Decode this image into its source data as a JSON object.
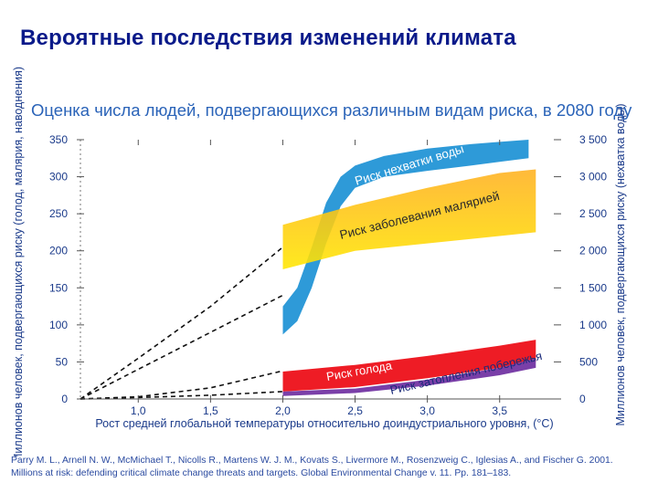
{
  "slide_title": "Вероятные последствия изменений климата",
  "reference": "Parry M. L., Arnell N. W., McMichael T., Nicolls R., Martens W. J. M., Kovats S., Livermore M., Rosenzweig C., Iglesias A., and Fischer G. 2001. Millions at risk: defending critical climate change threats and targets. Global Environmental Change v. 11. Pp. 181–183.",
  "colors": {
    "title": "#0a1a8a",
    "subtitle": "#2a63b8",
    "water": "#2e9ad8",
    "malaria_yellow": "#ffe600",
    "malaria_orange": "#ffb020",
    "hunger": "#ee1c25",
    "coastal": "#7a3fa8",
    "axis": "#555555"
  },
  "chart_data": {
    "type": "area",
    "title": "Оценка числа людей, подвергающихся различным видам риска, в 2080 году",
    "xlabel": "Рост средней глобальной температуры относительно доиндустриального уровня, (°С)",
    "ylabel_left": "Миллионов человек, подвергающихся риску (голод, малярия, наводнения)",
    "ylabel_right": "Миллионов человек, подвергающихся риску (нехватка воды)",
    "xlim": [
      0.6,
      3.9
    ],
    "ylim_left": [
      0,
      350
    ],
    "ylim_right": [
      0,
      3500
    ],
    "x_ticks": [
      "1,0",
      "1,5",
      "2,0",
      "2,5",
      "3,0",
      "3,5"
    ],
    "x_tick_values": [
      1.0,
      1.5,
      2.0,
      2.5,
      3.0,
      3.5
    ],
    "y_left_ticks": [
      "0",
      "50",
      "100",
      "150",
      "200",
      "250",
      "300",
      "350"
    ],
    "y_left_tick_values": [
      0,
      50,
      100,
      150,
      200,
      250,
      300,
      350
    ],
    "y_right_ticks": [
      "0",
      "500",
      "1 000",
      "1 500",
      "2 000",
      "2 500",
      "3 000",
      "3 500"
    ],
    "series": [
      {
        "name": "Риск нехватки воды",
        "axis": "right",
        "x": [
          2.0,
          2.1,
          2.2,
          2.3,
          2.4,
          2.5,
          2.7,
          3.0,
          3.3,
          3.5,
          3.7
        ],
        "lower": [
          870,
          1050,
          1500,
          2100,
          2600,
          2850,
          3000,
          3080,
          3150,
          3200,
          3250
        ],
        "upper": [
          1250,
          1500,
          2050,
          2650,
          3000,
          3150,
          3280,
          3380,
          3440,
          3470,
          3500
        ],
        "dashed_projection": {
          "x": [
            0.6,
            1.0,
            1.5,
            2.0
          ],
          "y": [
            0,
            550,
            1250,
            2050
          ]
        }
      },
      {
        "name": "Риск заболевания малярией",
        "axis": "left",
        "x": [
          2.0,
          2.5,
          3.0,
          3.5,
          3.75
        ],
        "lower": [
          175,
          200,
          210,
          220,
          225
        ],
        "upper": [
          235,
          262,
          285,
          305,
          310
        ],
        "dashed_projection": {
          "x": [
            0.6,
            1.0,
            1.5,
            2.0
          ],
          "y": [
            0,
            40,
            90,
            140
          ]
        }
      },
      {
        "name": "Риск голода",
        "axis": "left",
        "x": [
          2.0,
          2.5,
          3.0,
          3.5,
          3.75
        ],
        "lower": [
          10,
          16,
          28,
          42,
          50
        ],
        "upper": [
          37,
          46,
          58,
          72,
          80
        ],
        "dashed_projection": {
          "x": [
            0.6,
            1.0,
            1.5,
            2.0
          ],
          "y": [
            0,
            3,
            15,
            38
          ]
        }
      },
      {
        "name": "Риск затопления побережья",
        "axis": "left",
        "x": [
          2.0,
          2.5,
          3.0,
          3.5,
          3.75
        ],
        "lower": [
          4,
          8,
          18,
          32,
          42
        ],
        "upper": [
          10,
          14,
          26,
          42,
          55
        ],
        "dashed_projection": {
          "x": [
            0.6,
            1.0,
            1.5,
            2.0
          ],
          "y": [
            0,
            2,
            5,
            10
          ]
        }
      }
    ]
  }
}
